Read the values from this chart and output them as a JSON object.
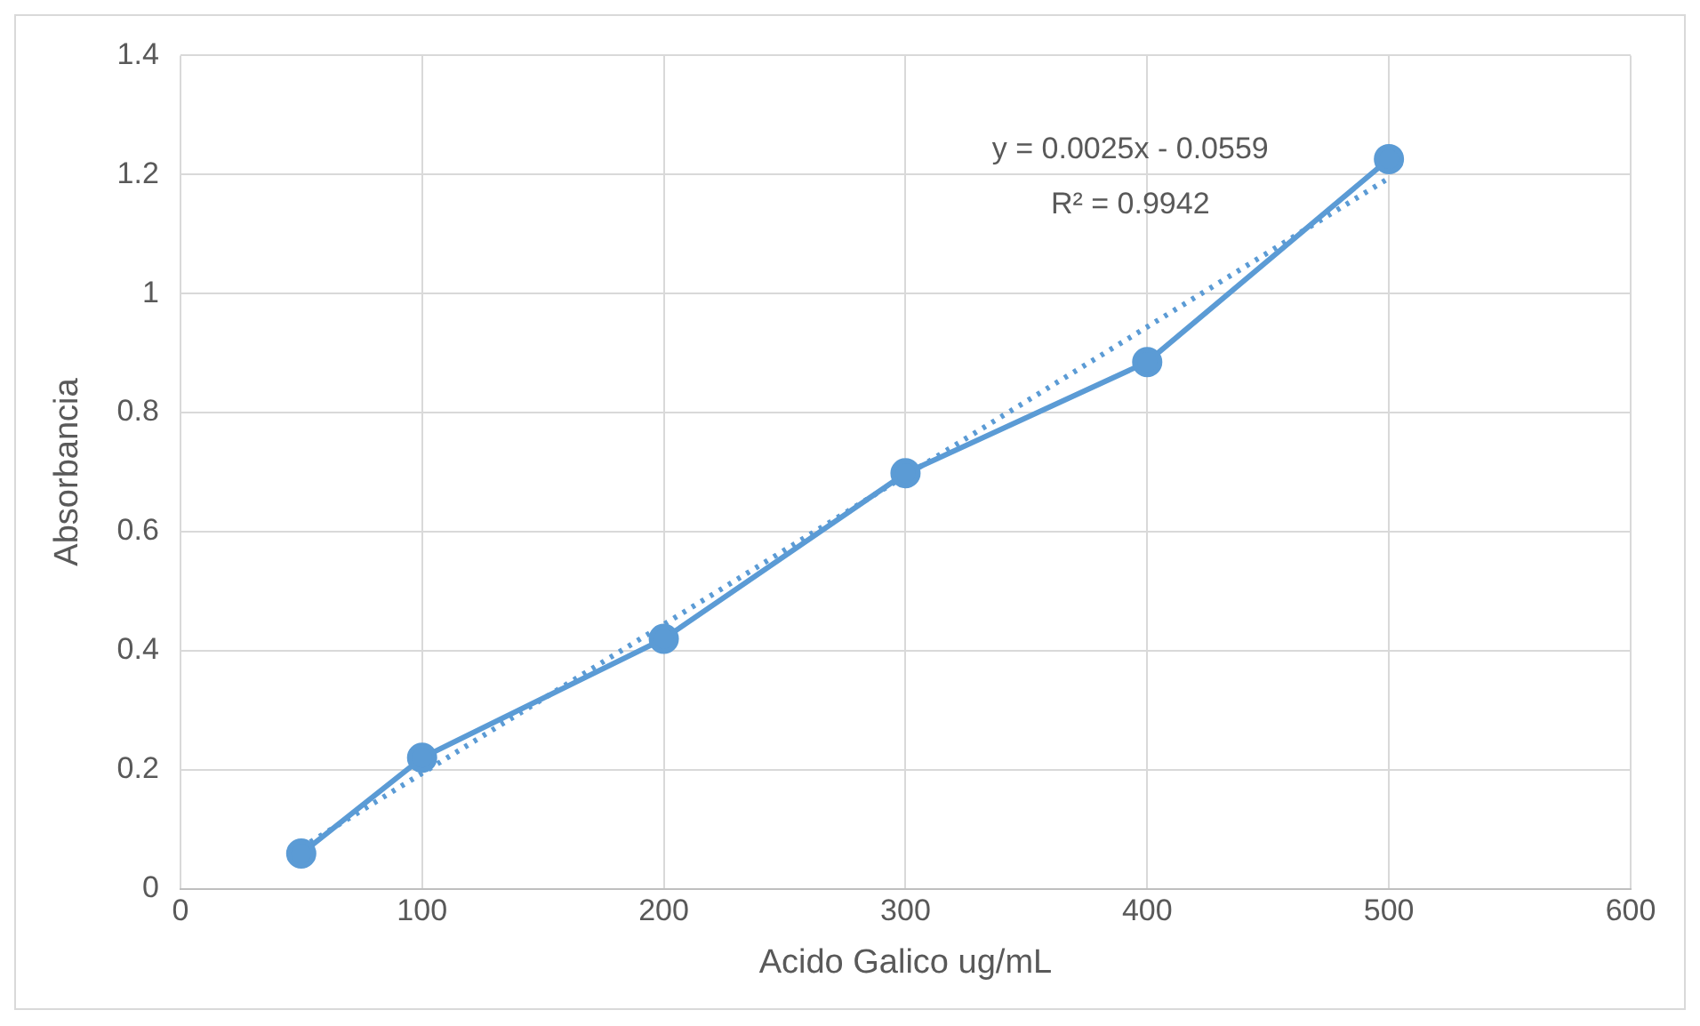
{
  "chart_data": {
    "type": "line",
    "xlabel": "Acido Galico ug/mL",
    "ylabel": "Absorbancia",
    "x": [
      50,
      100,
      200,
      300,
      400,
      500
    ],
    "series": [
      {
        "color": "#5b9bd5",
        "values": [
          0.059,
          0.22,
          0.42,
          0.698,
          0.885,
          1.226
        ],
        "marker": "circle",
        "line_style": "solid"
      },
      {
        "type": "line",
        "color": "#5b9bd5",
        "x": [
          50,
          500
        ],
        "values": [
          0.069,
          1.194
        ],
        "marker": "none",
        "line_style": "dotted"
      }
    ],
    "annotations": [
      "y = 0.0025x - 0.0559",
      "R² = 0.9942"
    ],
    "xlim": [
      0,
      600
    ],
    "xticks": [
      0,
      100,
      200,
      300,
      400,
      500,
      600
    ],
    "ylim": [
      0,
      1.4
    ],
    "yticks": [
      0,
      0.2,
      0.4,
      0.6,
      0.8,
      1,
      1.2,
      1.4
    ],
    "grid": true,
    "legend": false
  }
}
